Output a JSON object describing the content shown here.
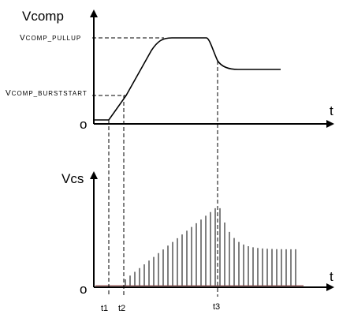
{
  "top_plot": {
    "y_axis_label": "Vcomp",
    "x_axis_label": "t",
    "origin_label": "o",
    "level_pullup": {
      "prefix": "V",
      "subscript": "COMP_PULLUP"
    },
    "level_burst": {
      "prefix": "V",
      "subscript": "COMP_BURSTSTART"
    }
  },
  "bottom_plot": {
    "y_axis_label": "Vcs",
    "x_axis_label": "t",
    "origin_label": "o"
  },
  "time_markers": [
    "t1",
    "t2",
    "t3"
  ]
}
